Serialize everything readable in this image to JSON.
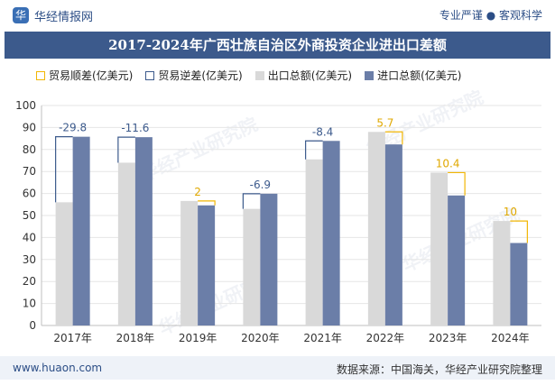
{
  "header": {
    "brand_icon": "华",
    "brand_name": "华经情报网",
    "tagline": "专业严谨 ● 客观科学"
  },
  "title": "2017-2024年广西壮族自治区外商投资企业进出口差额",
  "legend": {
    "surplus": "贸易顺差(亿美元)",
    "deficit": "贸易逆差(亿美元)",
    "export": "出口总额(亿美元)",
    "import": "进口总额(亿美元)"
  },
  "colors": {
    "export": "#d9d9d9",
    "import": "#6b7ea8",
    "surplus": "#f2b705",
    "deficit": "#3c5a8c",
    "title_band": "#3c5a8c"
  },
  "watermark": "华经产业研究院",
  "footer": {
    "url": "www.huaon.com",
    "source": "数据来源：中国海关，华经产业研究院整理"
  },
  "chart_data": {
    "type": "bar",
    "categories": [
      "2017年",
      "2018年",
      "2019年",
      "2020年",
      "2021年",
      "2022年",
      "2023年",
      "2024年"
    ],
    "series": [
      {
        "name": "出口总额(亿美元)",
        "values": [
          56.0,
          74.0,
          56.6,
          53.0,
          75.5,
          88.0,
          69.5,
          47.5
        ]
      },
      {
        "name": "进口总额(亿美元)",
        "values": [
          85.8,
          85.6,
          54.6,
          59.9,
          83.9,
          82.3,
          59.1,
          37.5
        ]
      }
    ],
    "balance_labels": [
      "-29.8",
      "-11.6",
      "2",
      "-6.9",
      "-8.4",
      "5.7",
      "10.4",
      "10"
    ],
    "ylim": [
      0,
      100
    ],
    "yticks": [
      "0",
      "10",
      "20",
      "30",
      "40",
      "50",
      "60",
      "70",
      "80",
      "90",
      "100"
    ],
    "grid": true,
    "legend_position": "top"
  }
}
